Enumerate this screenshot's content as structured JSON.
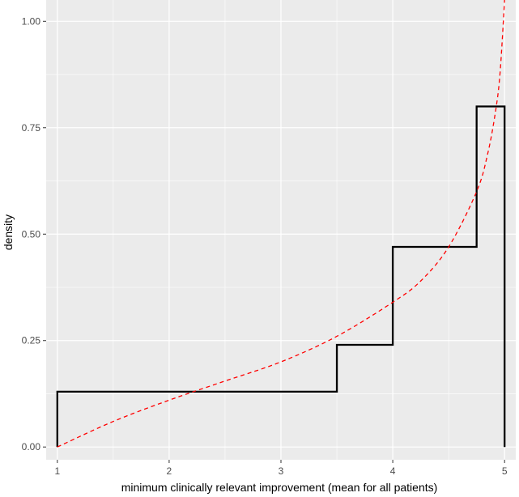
{
  "chart_data": {
    "type": "line",
    "xlabel": "minimum clinically relevant improvement (mean for all patients)",
    "ylabel": "density",
    "xlim": [
      0.9,
      5.1
    ],
    "ylim": [
      -0.03,
      1.05
    ],
    "x_ticks": [
      1,
      2,
      3,
      4,
      5
    ],
    "x_tick_labels": [
      "1",
      "2",
      "3",
      "4",
      "5"
    ],
    "y_ticks": [
      0,
      0.25,
      0.5,
      0.75,
      1.0
    ],
    "y_tick_labels": [
      "0.00",
      "0.25",
      "0.50",
      "0.75",
      "1.00"
    ],
    "grid": true,
    "background": "#ebebeb",
    "grid_color": "#ffffff",
    "series": [
      {
        "style": "solid",
        "color": "#000000",
        "shape": "step",
        "x": [
          1,
          1,
          3.5,
          3.5,
          4,
          4,
          4.75,
          4.75,
          5,
          5
        ],
        "y": [
          0,
          0.13,
          0.13,
          0.24,
          0.24,
          0.47,
          0.47,
          0.8,
          0.8,
          0
        ]
      },
      {
        "style": "dashed",
        "color": "#ff0000",
        "shape": "curve",
        "x": [
          1.0,
          1.5,
          2.0,
          2.5,
          3.0,
          3.5,
          4.0,
          4.25,
          4.5,
          4.75,
          4.85,
          4.92,
          4.96,
          5.0
        ],
        "y": [
          0.0,
          0.06,
          0.11,
          0.155,
          0.2,
          0.26,
          0.34,
          0.39,
          0.47,
          0.6,
          0.69,
          0.79,
          0.88,
          1.05
        ]
      }
    ]
  }
}
